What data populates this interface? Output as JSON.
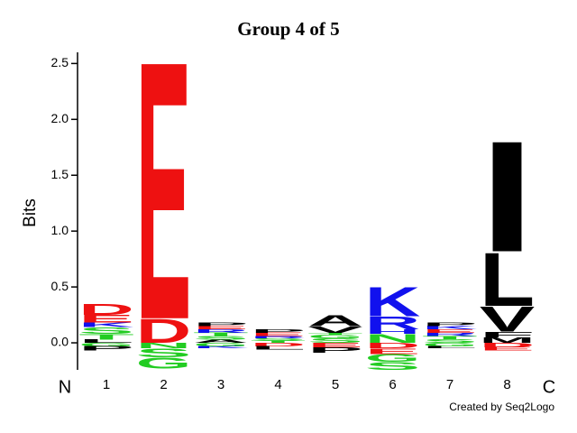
{
  "chart_data": {
    "type": "logo",
    "title": "Group 4 of 5",
    "ylabel": "Bits",
    "start_label": "N",
    "end_label": "C",
    "credit": "Created by Seq2Logo",
    "ylim": [
      -0.25,
      2.6
    ],
    "yticks": [
      {
        "value": 0,
        "label": "0.0"
      },
      0.5,
      {
        "value": 1,
        "label": "1.0"
      },
      1.5,
      {
        "value": 2,
        "label": "2.0"
      },
      2.5
    ],
    "categories": [
      "1",
      "2",
      "3",
      "4",
      "5",
      "6",
      "7",
      "8"
    ],
    "positions": [
      [
        {
          "letter": "L",
          "color": "#000000",
          "value": 0.03
        },
        {
          "letter": "T",
          "color": "#22cc22",
          "value": 0.05
        },
        {
          "letter": "S",
          "color": "#22cc22",
          "value": 0.06
        },
        {
          "letter": "K",
          "color": "#1111ee",
          "value": 0.04
        },
        {
          "letter": "E",
          "color": "#ee1111",
          "value": 0.07
        },
        {
          "letter": "D",
          "color": "#ee1111",
          "value": 0.1
        },
        {
          "letter": "G",
          "color": "#22cc22",
          "value": -0.03
        },
        {
          "letter": "P",
          "color": "#000000",
          "value": -0.04
        }
      ],
      [
        {
          "letter": "D",
          "color": "#ee1111",
          "value": 0.22
        },
        {
          "letter": "E",
          "color": "#ee1111",
          "value": 2.38
        },
        {
          "letter": "N",
          "color": "#22cc22",
          "value": -0.05
        },
        {
          "letter": "S",
          "color": "#22cc22",
          "value": -0.08
        },
        {
          "letter": "G",
          "color": "#22cc22",
          "value": -0.1
        }
      ],
      [
        {
          "letter": "A",
          "color": "#000000",
          "value": 0.03
        },
        {
          "letter": "S",
          "color": "#22cc22",
          "value": 0.03
        },
        {
          "letter": "T",
          "color": "#22cc22",
          "value": 0.03
        },
        {
          "letter": "R",
          "color": "#1111ee",
          "value": 0.03
        },
        {
          "letter": "E",
          "color": "#ee1111",
          "value": 0.03
        },
        {
          "letter": "P",
          "color": "#000000",
          "value": 0.03
        },
        {
          "letter": "G",
          "color": "#22cc22",
          "value": -0.03
        },
        {
          "letter": "K",
          "color": "#1111ee",
          "value": -0.02
        }
      ],
      [
        {
          "letter": "T",
          "color": "#22cc22",
          "value": 0.02
        },
        {
          "letter": "S",
          "color": "#22cc22",
          "value": 0.02
        },
        {
          "letter": "R",
          "color": "#1111ee",
          "value": 0.02
        },
        {
          "letter": "E",
          "color": "#ee1111",
          "value": 0.03
        },
        {
          "letter": "P",
          "color": "#000000",
          "value": 0.03
        },
        {
          "letter": "D",
          "color": "#ee1111",
          "value": -0.03
        },
        {
          "letter": "L",
          "color": "#000000",
          "value": -0.03
        }
      ],
      [
        {
          "letter": "S",
          "color": "#22cc22",
          "value": 0.04
        },
        {
          "letter": "G",
          "color": "#22cc22",
          "value": 0.03
        },
        {
          "letter": "T",
          "color": "#22cc22",
          "value": 0.02
        },
        {
          "letter": "V",
          "color": "#000000",
          "value": 0.06
        },
        {
          "letter": "A",
          "color": "#000000",
          "value": 0.1
        },
        {
          "letter": "E",
          "color": "#ee1111",
          "value": -0.04
        },
        {
          "letter": "P",
          "color": "#000000",
          "value": -0.05
        }
      ],
      [
        {
          "letter": "N",
          "color": "#22cc22",
          "value": 0.08
        },
        {
          "letter": "H",
          "color": "#1111ee",
          "value": 0.04
        },
        {
          "letter": "R",
          "color": "#1111ee",
          "value": 0.12
        },
        {
          "letter": "K",
          "color": "#1111ee",
          "value": 0.27
        },
        {
          "letter": "D",
          "color": "#ee1111",
          "value": -0.05
        },
        {
          "letter": "E",
          "color": "#ee1111",
          "value": -0.05
        },
        {
          "letter": "G",
          "color": "#22cc22",
          "value": -0.07
        },
        {
          "letter": "S",
          "color": "#22cc22",
          "value": -0.07
        }
      ],
      [
        {
          "letter": "S",
          "color": "#22cc22",
          "value": 0.03
        },
        {
          "letter": "T",
          "color": "#22cc22",
          "value": 0.03
        },
        {
          "letter": "R",
          "color": "#1111ee",
          "value": 0.03
        },
        {
          "letter": "E",
          "color": "#ee1111",
          "value": 0.03
        },
        {
          "letter": "K",
          "color": "#1111ee",
          "value": 0.03
        },
        {
          "letter": "P",
          "color": "#000000",
          "value": 0.03
        },
        {
          "letter": "G",
          "color": "#22cc22",
          "value": -0.03
        },
        {
          "letter": "L",
          "color": "#000000",
          "value": -0.02
        }
      ],
      [
        {
          "letter": "M",
          "color": "#000000",
          "value": 0.05
        },
        {
          "letter": "F",
          "color": "#000000",
          "value": 0.05
        },
        {
          "letter": "V",
          "color": "#000000",
          "value": 0.23
        },
        {
          "letter": "L",
          "color": "#000000",
          "value": 0.49
        },
        {
          "letter": "I",
          "color": "#000000",
          "value": 1.02
        },
        {
          "letter": "D",
          "color": "#ee1111",
          "value": -0.04
        },
        {
          "letter": "E",
          "color": "#ee1111",
          "value": -0.03
        }
      ]
    ]
  }
}
